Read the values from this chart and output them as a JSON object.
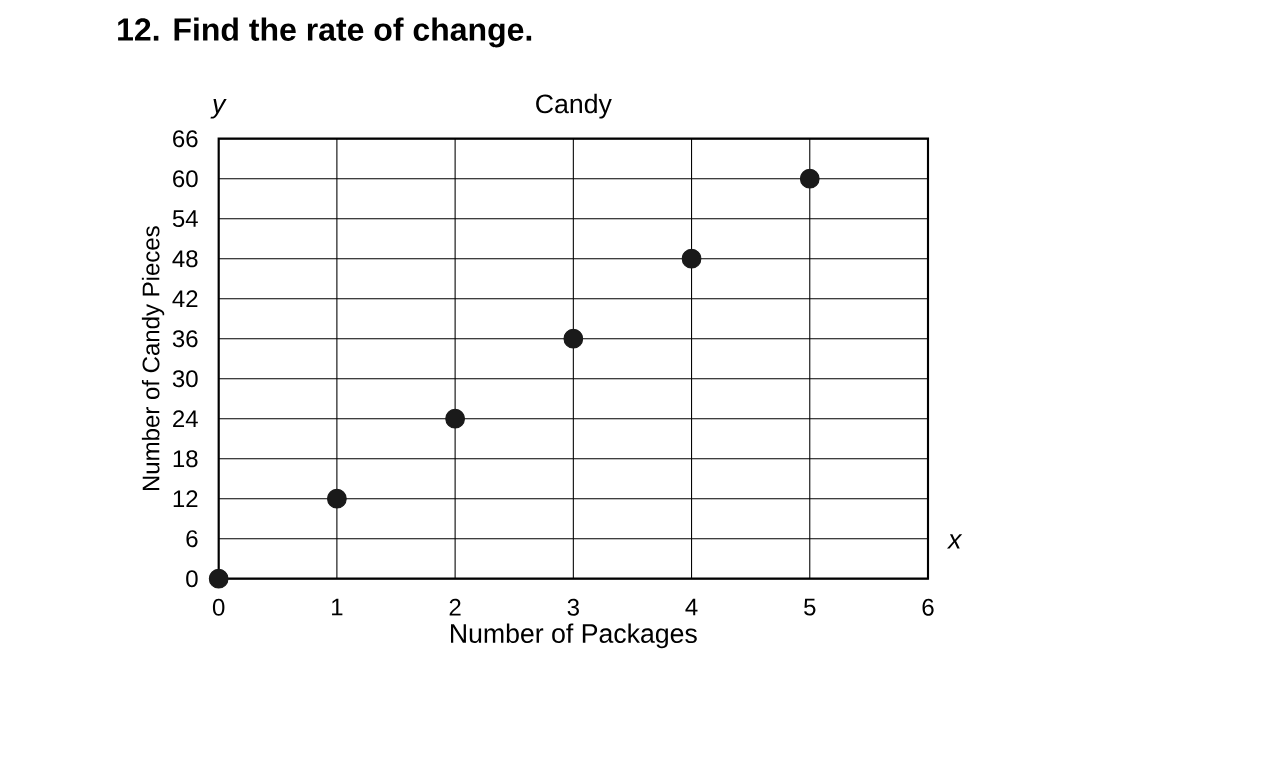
{
  "chart_data": {
    "type": "scatter",
    "title": "Candy",
    "xlabel": "Number of Packages",
    "ylabel": "Number of Candy Pieces",
    "annotations": [
      "12. Find the rate of change.",
      "y",
      "x"
    ],
    "x": [
      0,
      1,
      2,
      3,
      4,
      5
    ],
    "values": [
      0,
      12,
      24,
      36,
      48,
      60
    ],
    "color": "#1a1a1a",
    "marker": "circle",
    "grid": true,
    "xlim": [
      0,
      6
    ],
    "xticks": [
      0,
      1,
      2,
      3,
      4,
      5,
      6
    ],
    "ylim": [
      0,
      66
    ],
    "yticks": [
      0,
      6,
      12,
      18,
      24,
      30,
      36,
      42,
      48,
      54,
      60,
      66
    ]
  }
}
